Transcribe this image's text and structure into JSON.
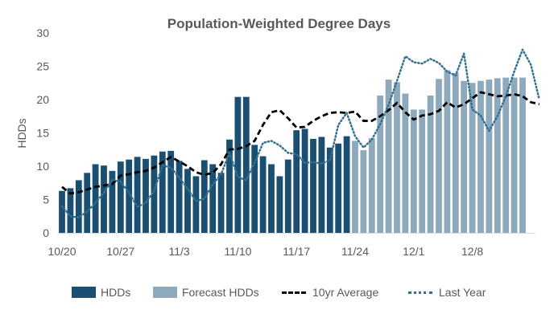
{
  "chart_data": {
    "type": "bar",
    "title": "Population-Weighted Degree Days",
    "xlabel": "",
    "ylabel": "HDDs",
    "ylim": [
      0,
      30
    ],
    "yticks": [
      0,
      5,
      10,
      15,
      20,
      25,
      30
    ],
    "grid": false,
    "legend_position": "bottom",
    "x_tick_labels": [
      {
        "index": 0,
        "label": "10/20"
      },
      {
        "index": 7,
        "label": "10/27"
      },
      {
        "index": 14,
        "label": "11/3"
      },
      {
        "index": 21,
        "label": "11/10"
      },
      {
        "index": 28,
        "label": "11/17"
      },
      {
        "index": 35,
        "label": "11/24"
      },
      {
        "index": 42,
        "label": "12/1"
      },
      {
        "index": 49,
        "label": "12/8"
      }
    ],
    "series": [
      {
        "name": "HDDs",
        "kind": "bar",
        "color": "#1b4f72",
        "start_index": 0,
        "values": [
          6.3,
          6.7,
          7.9,
          9.0,
          10.3,
          10.1,
          9.3,
          10.7,
          11.0,
          11.4,
          11.1,
          11.6,
          12.2,
          12.3,
          10.8,
          9.6,
          8.5,
          10.9,
          10.3,
          9.0,
          14.0,
          20.4,
          20.4,
          13.2,
          11.5,
          10.3,
          8.5,
          11.0,
          15.4,
          15.6,
          14.1,
          14.4,
          12.8,
          13.4,
          14.5
        ]
      },
      {
        "name": "Forecast HDDs",
        "kind": "bar",
        "color": "#8ea9bb",
        "start_index": 35,
        "values": [
          13.8,
          12.4,
          14.2,
          20.6,
          23.0,
          22.6,
          20.9,
          18.5,
          18.5,
          20.6,
          23.1,
          24.4,
          24.0,
          22.8,
          22.5,
          22.8,
          23.0,
          23.2,
          23.3,
          23.3,
          23.3
        ]
      },
      {
        "name": "10yr Average",
        "kind": "line",
        "style": "dashed",
        "color": "#000000",
        "values": [
          6.9,
          5.9,
          6.1,
          6.5,
          6.9,
          7.1,
          7.3,
          8.6,
          8.8,
          9.1,
          9.3,
          9.8,
          10.6,
          11.4,
          10.7,
          10.0,
          9.1,
          8.7,
          9.0,
          10.3,
          12.5,
          12.6,
          13.0,
          13.8,
          16.2,
          18.1,
          18.4,
          17.2,
          15.8,
          15.9,
          16.8,
          17.5,
          18.0,
          18.1,
          18.0,
          18.2,
          16.8,
          16.8,
          17.5,
          18.4,
          19.5,
          18.1,
          17.0,
          17.6,
          17.8,
          18.3,
          19.6,
          18.8,
          19.3,
          20.2,
          21.1,
          20.8,
          20.5,
          20.6,
          20.8,
          20.5,
          19.6,
          19.3
        ]
      },
      {
        "name": "Last Year",
        "kind": "line",
        "style": "dotted",
        "color": "#31708f",
        "values": [
          4.0,
          2.5,
          2.3,
          3.2,
          4.5,
          6.0,
          8.0,
          7.7,
          6.0,
          3.9,
          4.5,
          6.3,
          10.1,
          9.8,
          8.3,
          6.6,
          4.8,
          5.1,
          7.3,
          8.8,
          12.0,
          8.4,
          7.9,
          10.5,
          13.5,
          13.8,
          13.1,
          12.0,
          11.8,
          10.5,
          10.6,
          10.4,
          10.9,
          16.2,
          18.0,
          14.5,
          12.8,
          14.0,
          16.3,
          19.2,
          22.8,
          26.5,
          25.6,
          25.4,
          26.1,
          25.5,
          24.2,
          23.6,
          26.9,
          18.5,
          17.6,
          15.3,
          17.5,
          20.5,
          24.2,
          27.5,
          25.2,
          20.0
        ]
      }
    ]
  }
}
